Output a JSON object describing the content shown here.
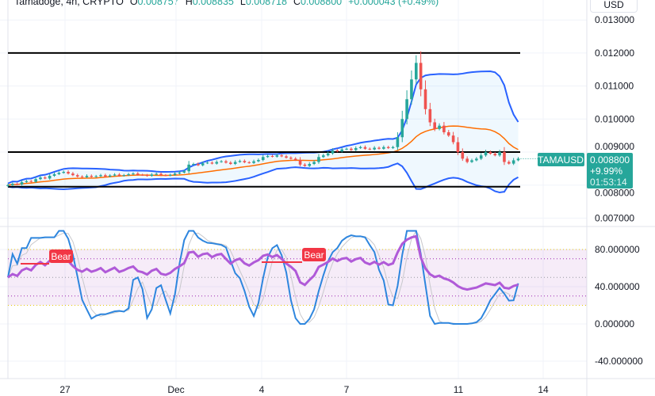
{
  "header": {
    "symbol": "Tamadoge, 4h, CRYPTO",
    "o_label": "O",
    "o": "0.008757",
    "h_label": "H",
    "h": "0.008835",
    "l_label": "L",
    "l": "0.008718",
    "c_label": "C",
    "c": "0.008800",
    "change": "+0.000043 (+0.49%)"
  },
  "currency_button": "USD",
  "price_label": {
    "symbol": "TAMAUSD",
    "price": "0.008800",
    "change": "+9.99%",
    "countdown": "01:53:14"
  },
  "colors": {
    "up": "#26a69a",
    "down": "#ef5350",
    "bollinger": "#2962ff",
    "basis": "#ff6d00",
    "stoch_k": "#2e86de",
    "stoch_d": "#c8c8cc",
    "rsi": "#b05ad8",
    "bear": "#f23645"
  },
  "chart_data": [
    {
      "type": "candlestick",
      "indicators": [
        "Bollinger Bands"
      ],
      "ylim": [
        0.0068,
        0.0132
      ],
      "y_ticks": [
        "0.013000",
        "0.012000",
        "0.011000",
        "0.010000",
        "0.009000",
        "0.008000",
        "0.007000"
      ],
      "horizontal_lines": [
        0.012,
        0.009,
        0.00795
      ],
      "x_ticks": [
        "27",
        "Dec",
        "4",
        "7",
        "11",
        "14"
      ],
      "closes": [
        0.008,
        0.00804,
        0.00802,
        0.00809,
        0.00812,
        0.0081,
        0.00818,
        0.00823,
        0.0082,
        0.00828,
        0.00833,
        0.00837,
        0.0084,
        0.00835,
        0.0083,
        0.00826,
        0.00824,
        0.00828,
        0.00825,
        0.00827,
        0.0083,
        0.00826,
        0.00829,
        0.00832,
        0.00828,
        0.0083,
        0.00833,
        0.00835,
        0.00831,
        0.0083,
        0.00828,
        0.00832,
        0.00834,
        0.0083,
        0.00829,
        0.00831,
        0.00835,
        0.00838,
        0.00842,
        0.00862,
        0.00864,
        0.0086,
        0.00866,
        0.00868,
        0.00865,
        0.0087,
        0.00872,
        0.00868,
        0.00864,
        0.0087,
        0.00873,
        0.00869,
        0.00867,
        0.00872,
        0.00876,
        0.00885,
        0.00888,
        0.00886,
        0.0089,
        0.00887,
        0.00883,
        0.0088,
        0.00876,
        0.00862,
        0.00858,
        0.00864,
        0.0087,
        0.00885,
        0.0089,
        0.00896,
        0.00905,
        0.00902,
        0.00908,
        0.0091,
        0.00906,
        0.00912,
        0.00915,
        0.0091,
        0.00908,
        0.00913,
        0.0091,
        0.00915,
        0.00912,
        0.00915,
        0.00945,
        0.01,
        0.0106,
        0.0112,
        0.0117,
        0.0109,
        0.0103,
        0.0099,
        0.0097,
        0.0098,
        0.0096,
        0.0095,
        0.0093,
        0.009,
        0.0088,
        0.0087,
        0.00875,
        0.0088,
        0.0089,
        0.009,
        0.00895,
        0.0089,
        0.009,
        0.0087,
        0.00865,
        0.00875,
        0.0088
      ]
    },
    {
      "type": "line",
      "indicators": [
        "Stoch RSI",
        "RSI"
      ],
      "ylim": [
        -50,
        90
      ],
      "y_ticks": [
        "80.000000",
        "40.000000",
        "0.000000",
        "-40.000000"
      ],
      "bands": [
        80,
        70,
        50,
        30,
        20
      ],
      "labels": [
        "Bear",
        "Bear"
      ]
    }
  ]
}
